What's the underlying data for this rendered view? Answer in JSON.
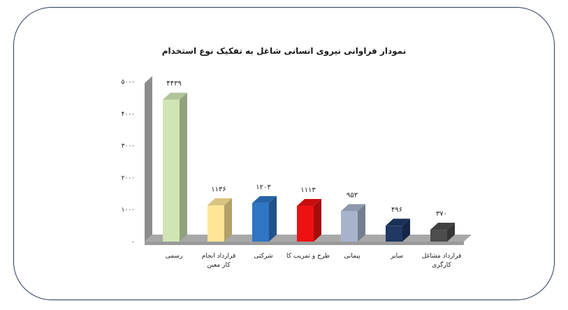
{
  "chart_data": {
    "type": "bar",
    "title": "نمودار فراوانی نیروی انسانی شاغل به تفکیک نوع استخدام",
    "categories": [
      [
        "رسمی"
      ],
      [
        "قرارداد انجام",
        "کار معین"
      ],
      [
        "شرکتی"
      ],
      [
        "طرح و تمریب کا"
      ],
      [
        "پیمانی"
      ],
      [
        "سایر"
      ],
      [
        "قرارداد مشاغل",
        "کارگری"
      ]
    ],
    "values": [
      4439,
      1136,
      1203,
      1113,
      953,
      496,
      370
    ],
    "value_labels": [
      "۴۴۳۹",
      "۱۱۳۶",
      "۱۲۰۳",
      "۱۱۱۳",
      "۹۵۳",
      "۴۹۶",
      "۳۷۰"
    ],
    "colors": [
      "#cfe6b4",
      "#ffe598",
      "#2e75c4",
      "#ee1111",
      "#a6b3cb",
      "#1f3864",
      "#4d4d4d"
    ],
    "ylim": [
      0,
      5000
    ],
    "yticks": [
      0,
      1000,
      2000,
      3000,
      4000,
      5000
    ],
    "ytick_labels": [
      "۰",
      "۱۰۰۰",
      "۲۰۰۰",
      "۳۰۰۰",
      "۴۰۰۰",
      "۵۰۰۰"
    ],
    "grid": false,
    "legend": "none",
    "style": "3d-column"
  }
}
